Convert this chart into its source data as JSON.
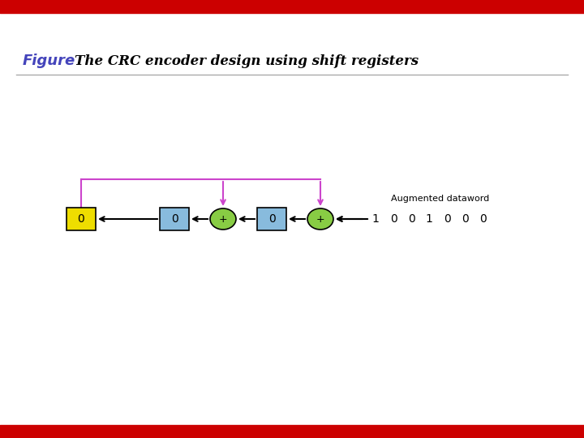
{
  "title_figure": "Figure",
  "title_text": "The CRC encoder design using shift registers",
  "title_figure_color": "#4444bb",
  "title_text_color": "#000000",
  "bg_color": "#ffffff",
  "border_color": "#cc0000",
  "feedback_line_color": "#cc44cc",
  "arrow_color": "#000000",
  "reg_box_color": "#88bbdd",
  "reg_box_edge": "#000000",
  "output_box_color": "#eedd00",
  "output_box_edge": "#000000",
  "xor_circle_color": "#88cc44",
  "xor_circle_edge": "#000000",
  "augmented_label": "Augmented dataword",
  "data_bits": [
    "1",
    "0",
    "0",
    "1",
    "0",
    "0",
    "0"
  ],
  "fig_width": 7.2,
  "fig_height": 5.4
}
